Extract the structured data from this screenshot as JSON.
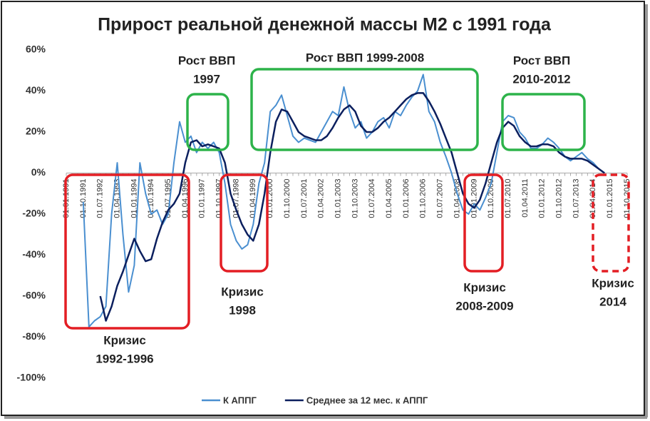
{
  "chart_data": {
    "type": "line",
    "title": "Прирост реальной денежной массы М2 с 1991 года",
    "categories": [
      "01.01.1991",
      null,
      null,
      "01.10.1991",
      null,
      null,
      "01.07.1992",
      null,
      null,
      "01.04.1993",
      null,
      null,
      "01.01.1994",
      null,
      null,
      "01.10.1994",
      null,
      null,
      "01.07.1995",
      null,
      null,
      "01.04.1996",
      null,
      null,
      "01.01.1997",
      null,
      null,
      "01.10.1997",
      null,
      null,
      "01.07.1998",
      null,
      null,
      "01.04.1999",
      null,
      null,
      "01.01.2000",
      null,
      null,
      "01.10.2000",
      null,
      null,
      "01.07.2001",
      null,
      null,
      "01.04.2002",
      null,
      null,
      "01.01.2003",
      null,
      null,
      "01.10.2003",
      null,
      null,
      "01.07.2004",
      null,
      null,
      "01.04.2005",
      null,
      null,
      "01.01.2006",
      null,
      null,
      "01.10.2006",
      null,
      null,
      "01.07.2007",
      null,
      null,
      "01.04.2008",
      null,
      null,
      "01.01.2009",
      null,
      null,
      "01.10.2009",
      null,
      null,
      "01.07.2010",
      null,
      null,
      "01.04.2011",
      null,
      null,
      "01.01.2012",
      null,
      null,
      "01.10.2012",
      null,
      null,
      "01.07.2013",
      null,
      null,
      "01.04.2014",
      null,
      null,
      "01.01.2015",
      null,
      null,
      "01.10.2015"
    ],
    "series": [
      {
        "name": "К АППГ",
        "color": "#4a8fd0",
        "values": [
          null,
          null,
          null,
          -14,
          -75,
          -72,
          -70,
          -65,
          -20,
          5,
          -30,
          -58,
          -45,
          5,
          -10,
          -20,
          -18,
          -25,
          -20,
          5,
          25,
          15,
          18,
          10,
          15,
          12,
          15,
          10,
          -5,
          -25,
          -33,
          -37,
          -35,
          -25,
          -5,
          5,
          30,
          33,
          38,
          28,
          18,
          15,
          17,
          16,
          15,
          20,
          25,
          30,
          28,
          42,
          30,
          22,
          25,
          17,
          20,
          25,
          27,
          22,
          30,
          28,
          33,
          37,
          40,
          48,
          30,
          25,
          15,
          8,
          0,
          -10,
          -18,
          -20,
          -15,
          -18,
          -12,
          -5,
          10,
          25,
          28,
          27,
          20,
          17,
          12,
          12,
          14,
          17,
          15,
          12,
          8,
          6,
          8,
          10,
          7,
          5,
          2,
          0,
          null,
          null,
          null,
          null
        ]
      },
      {
        "name": "Среднее за 12 мес. к АППГ",
        "color": "#0b1f5e",
        "values": [
          null,
          null,
          null,
          null,
          null,
          null,
          -60,
          -72,
          -65,
          -55,
          -48,
          -40,
          -32,
          -38,
          -43,
          -42,
          -32,
          -24,
          -18,
          -15,
          -10,
          5,
          15,
          16,
          13,
          14,
          13,
          12,
          5,
          -10,
          -18,
          -25,
          -30,
          -33,
          -25,
          -10,
          10,
          25,
          31,
          30,
          25,
          20,
          18,
          17,
          16,
          16,
          18,
          22,
          27,
          31,
          33,
          30,
          23,
          20,
          20,
          22,
          25,
          27,
          30,
          33,
          36,
          38,
          39,
          39,
          35,
          30,
          24,
          17,
          10,
          0,
          -10,
          -15,
          -17,
          -13,
          -5,
          5,
          15,
          22,
          25,
          23,
          18,
          15,
          13,
          13,
          14,
          14,
          13,
          10,
          8,
          7,
          7,
          7,
          6,
          4,
          2,
          0,
          null,
          null,
          null,
          null
        ]
      }
    ],
    "ylim": [
      -100,
      60
    ],
    "yticks": [
      {
        "value": -100,
        "label": "-100%"
      },
      {
        "value": -80,
        "label": "-80%"
      },
      {
        "value": -60,
        "label": "-60%"
      },
      {
        "value": -40,
        "label": "-40%"
      },
      {
        "value": -20,
        "label": "-20%"
      },
      {
        "value": 0,
        "label": "0%"
      },
      {
        "value": 20,
        "label": "20%"
      },
      {
        "value": 40,
        "label": "40%"
      },
      {
        "value": 60,
        "label": "60%"
      }
    ],
    "annotations": [
      {
        "text": [
          "Рост ВВП",
          "1997"
        ]
      },
      {
        "text": [
          "Рост ВВП 1999-2008"
        ]
      },
      {
        "text": [
          "Рост ВВП",
          "2010-2012"
        ]
      },
      {
        "text": [
          "Кризис",
          "1992-1996"
        ]
      },
      {
        "text": [
          "Кризис",
          "1998"
        ]
      },
      {
        "text": [
          "Кризис",
          "2008-2009"
        ]
      },
      {
        "text": [
          "Кризис",
          "2014"
        ]
      }
    ],
    "legend": "bottom"
  }
}
